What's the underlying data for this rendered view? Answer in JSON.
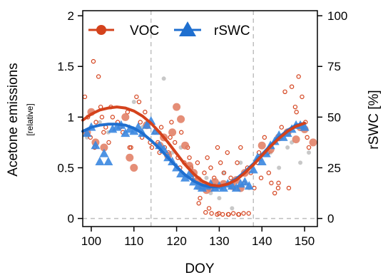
{
  "chart_data": {
    "type": "scatter",
    "xlabel": "DOY",
    "ylabel": "Acetone emissions",
    "ylabel_sub": "[relative]",
    "y2label": "rSWC [%]",
    "xlim": [
      98,
      153
    ],
    "ylim": [
      -0.08,
      2.05
    ],
    "y2lim": [
      -4,
      102.5
    ],
    "x_ticks": [
      100,
      110,
      120,
      130,
      140,
      150
    ],
    "y_ticks": [
      0,
      0.5,
      1,
      1.5,
      2
    ],
    "y2_ticks": [
      0,
      25,
      50,
      75,
      100
    ],
    "x_tick_labels": [
      "100",
      "110",
      "120",
      "130",
      "140",
      "150"
    ],
    "y_tick_labels": [
      "0",
      "0.5",
      "1",
      "1.5",
      "2"
    ],
    "y2_tick_labels": [
      "0",
      "25",
      "50",
      "75",
      "100"
    ],
    "vlines": [
      114,
      138
    ],
    "hline": 0,
    "legend": {
      "placement": "top-left",
      "entries": [
        {
          "label": "VOC",
          "color": "#d4421c",
          "marker": "circle"
        },
        {
          "label": "rSWC",
          "color": "#1f6fcf",
          "marker": "triangle"
        }
      ]
    },
    "colors": {
      "voc": "#d4421c",
      "voc_fill": "#e07a5f",
      "rswc": "#1f6fcf",
      "rswc_fill": "#3a87e0",
      "grey": "#c8c8c8"
    },
    "series": [
      {
        "key": "voc_fit",
        "kind": "line",
        "axis": "left",
        "color": "#d4421c",
        "x": [
          98,
          100,
          102,
          104,
          106,
          108,
          110,
          112,
          114,
          116,
          118,
          120,
          122,
          124,
          126,
          128,
          130,
          132,
          134,
          136,
          138,
          140,
          142,
          144,
          146,
          148,
          150
        ],
        "y": [
          0.97,
          1.03,
          1.07,
          1.09,
          1.1,
          1.09,
          1.06,
          1.01,
          0.94,
          0.85,
          0.75,
          0.64,
          0.53,
          0.44,
          0.37,
          0.33,
          0.32,
          0.34,
          0.38,
          0.45,
          0.53,
          0.62,
          0.71,
          0.79,
          0.86,
          0.91,
          0.94
        ]
      },
      {
        "key": "rswc_fit",
        "kind": "line",
        "axis": "right",
        "color": "#1f6fcf",
        "x": [
          98,
          100,
          102,
          104,
          106,
          108,
          110,
          112,
          114,
          116,
          118,
          120,
          122,
          124,
          126,
          128,
          130,
          132,
          134,
          136,
          138,
          140,
          142,
          144,
          146,
          148,
          150
        ],
        "y": [
          43,
          45,
          46,
          46.5,
          46.5,
          46,
          44.5,
          42,
          38.5,
          34.5,
          30,
          25.5,
          21.5,
          18.5,
          16.5,
          15.5,
          15.8,
          17,
          19.5,
          23,
          27,
          31.5,
          36,
          40,
          43.5,
          46,
          47
        ]
      },
      {
        "key": "voc_daily",
        "kind": "scatter-large",
        "axis": "left",
        "color": "#d4421c",
        "x": [
          99,
          100,
          101,
          103,
          108,
          109,
          110,
          113,
          116,
          117,
          118,
          119,
          120,
          121,
          122,
          123,
          124,
          125,
          126,
          127,
          128,
          129,
          131,
          133,
          134,
          135,
          136,
          140,
          142,
          144,
          146,
          148,
          149,
          150,
          152
        ],
        "y": [
          0.85,
          1.05,
          0.75,
          0.7,
          1.0,
          0.6,
          0.5,
          0.92,
          0.72,
          0.8,
          0.62,
          0.85,
          1.1,
          0.98,
          0.72,
          0.52,
          0.45,
          0.38,
          0.32,
          0.28,
          0.3,
          0.36,
          0.34,
          0.32,
          0.38,
          0.3,
          0.45,
          0.72,
          0.68,
          0.8,
          0.85,
          0.78,
          0.9,
          0.88,
          0.75
        ]
      },
      {
        "key": "voc_hourly",
        "kind": "scatter-open",
        "axis": "left",
        "color": "#d4421c",
        "x": [
          98.5,
          99.2,
          99.8,
          100.5,
          101.1,
          101.7,
          102.2,
          102.9,
          103.4,
          104.1,
          105.0,
          106.2,
          107.4,
          108.5,
          109.3,
          110.6,
          111.2,
          111.9,
          112.6,
          113.3,
          114.2,
          114.9,
          115.6,
          116.4,
          117.2,
          118.1,
          118.8,
          119.6,
          120.3,
          121.1,
          121.8,
          122.6,
          123.4,
          124.2,
          124.9,
          125.7,
          126.5,
          127.2,
          128.0,
          128.8,
          129.6,
          130.3,
          131.1,
          131.9,
          132.7,
          133.4,
          134.2,
          135.0,
          135.8,
          136.6,
          137.4,
          138.2,
          139.0,
          139.8,
          140.6,
          141.4,
          142.2,
          143.0,
          143.8,
          144.6,
          145.4,
          146.2,
          147.0,
          147.8,
          148.6,
          149.4,
          150.2,
          151.0,
          100.8,
          102.5,
          104.6,
          106.8,
          109.0,
          111.5,
          113.8,
          116.0,
          118.5,
          120.8,
          123.0,
          125.2,
          127.6,
          129.9,
          132.2,
          134.6,
          136.9,
          139.3,
          141.6,
          143.9,
          146.3,
          148.1,
          150.6,
          125.5,
          126.8,
          128.2,
          129.5,
          130.8,
          132.1,
          133.3,
          134.5,
          135.7
        ],
        "y": [
          1.2,
          1.0,
          0.8,
          1.55,
          0.95,
          1.4,
          1.1,
          0.85,
          0.9,
          0.75,
          1.0,
          0.95,
          0.85,
          1.05,
          0.7,
          1.2,
          1.15,
          0.8,
          1.05,
          0.95,
          0.7,
          0.85,
          0.75,
          0.9,
          0.7,
          0.65,
          0.95,
          0.75,
          0.6,
          0.85,
          0.55,
          0.7,
          0.5,
          0.4,
          0.55,
          0.35,
          0.45,
          0.6,
          0.5,
          0.4,
          0.7,
          0.55,
          0.45,
          0.65,
          0.4,
          0.3,
          0.55,
          0.7,
          0.35,
          0.5,
          0.45,
          0.3,
          0.55,
          0.4,
          0.8,
          0.65,
          0.35,
          0.25,
          0.3,
          0.9,
          1.25,
          0.85,
          1.3,
          1.1,
          1.4,
          1.2,
          0.95,
          0.7,
          0.7,
          1.0,
          1.1,
          0.9,
          0.7,
          0.95,
          0.75,
          0.65,
          0.8,
          0.5,
          0.6,
          0.15,
          0.1,
          0.05,
          0.04,
          0.04,
          0.05,
          0.65,
          0.45,
          0.35,
          0.3,
          1.05,
          0.8,
          0.2,
          0.06,
          0.05,
          0.04,
          0.04,
          0.04,
          0.05,
          0.04,
          0.05
        ]
      },
      {
        "key": "grey_points",
        "kind": "scatter-grey",
        "axis": "left",
        "color": "#c8c8c8",
        "x": [
          99,
          102,
          104,
          110,
          112,
          116,
          117,
          119,
          121,
          123,
          125,
          127,
          128,
          130,
          131,
          133,
          135,
          137,
          139,
          142,
          144,
          146,
          147,
          149,
          151
        ],
        "y": [
          0.8,
          0.95,
          0.85,
          1.15,
          0.9,
          0.85,
          1.38,
          0.65,
          0.7,
          0.5,
          0.3,
          0.4,
          0.25,
          0.2,
          0.45,
          0.1,
          0.55,
          0.3,
          0.6,
          0.65,
          0.5,
          0.7,
          0.75,
          0.55,
          0.65
        ]
      },
      {
        "key": "rswc_points",
        "kind": "scatter-triangle",
        "axis": "right",
        "color": "#1f6fcf",
        "x": [
          99,
          100,
          101,
          102,
          103,
          104,
          105,
          106,
          107,
          108,
          109,
          110,
          111,
          112,
          113,
          114,
          115,
          116,
          117,
          118,
          119,
          120,
          121,
          122,
          123,
          124,
          125,
          126,
          127,
          128,
          129,
          130,
          131,
          132,
          133,
          134,
          135,
          136,
          137,
          138,
          139,
          140,
          141,
          142,
          143,
          144,
          145,
          146,
          147,
          148,
          149,
          150
        ],
        "y": [
          42,
          45,
          36,
          28,
          32,
          28,
          44,
          45,
          46,
          42,
          44,
          43,
          45,
          42,
          46,
          48,
          43,
          36,
          34,
          30,
          28,
          25,
          22,
          20,
          22,
          18,
          16,
          15,
          16,
          17,
          15,
          16,
          15,
          17,
          16,
          15,
          17,
          18,
          16,
          24,
          30,
          28,
          32,
          36,
          38,
          41,
          40,
          42,
          44,
          46,
          46,
          45
        ]
      }
    ]
  }
}
